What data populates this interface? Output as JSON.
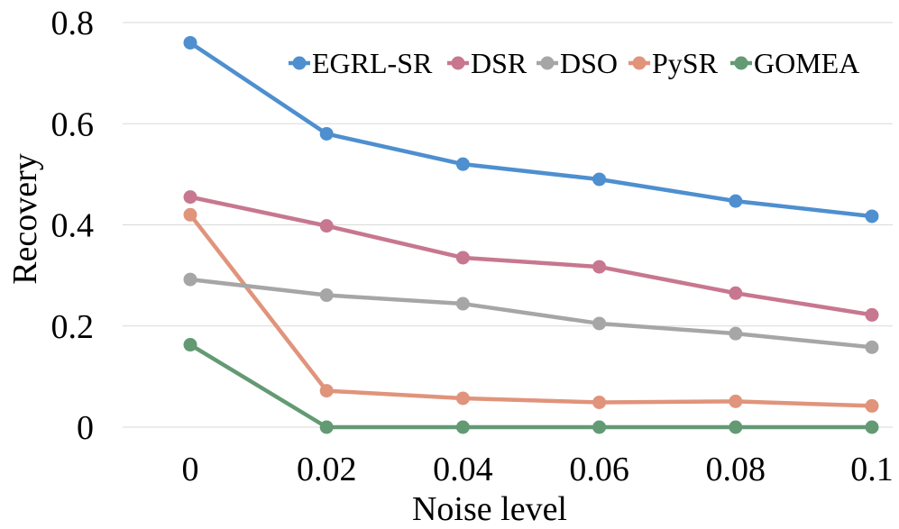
{
  "chart_data": {
    "type": "line",
    "title": "",
    "xlabel": "Noise level",
    "ylabel": "Recovery",
    "categories": [
      "0",
      "0.02",
      "0.04",
      "0.06",
      "0.08",
      "0.1"
    ],
    "yticks": [
      "0",
      "0.2",
      "0.4",
      "0.6",
      "0.8"
    ],
    "ylim": [
      0,
      0.8
    ],
    "grid": true,
    "legend_position": "top-right",
    "series": [
      {
        "name": "EGRL-SR",
        "color": "#4e8fcf",
        "values": [
          0.76,
          0.58,
          0.52,
          0.49,
          0.447,
          0.417
        ]
      },
      {
        "name": "DSR",
        "color": "#c7778f",
        "values": [
          0.455,
          0.398,
          0.335,
          0.317,
          0.265,
          0.222
        ]
      },
      {
        "name": "DSO",
        "color": "#a6a6a6",
        "values": [
          0.292,
          0.261,
          0.244,
          0.205,
          0.185,
          0.158
        ]
      },
      {
        "name": "PySR",
        "color": "#e0947b",
        "values": [
          0.42,
          0.072,
          0.057,
          0.049,
          0.051,
          0.042
        ]
      },
      {
        "name": "GOMEA",
        "color": "#639a74",
        "values": [
          0.163,
          0.0,
          0.0,
          0.0,
          0.0,
          0.0
        ]
      }
    ]
  }
}
